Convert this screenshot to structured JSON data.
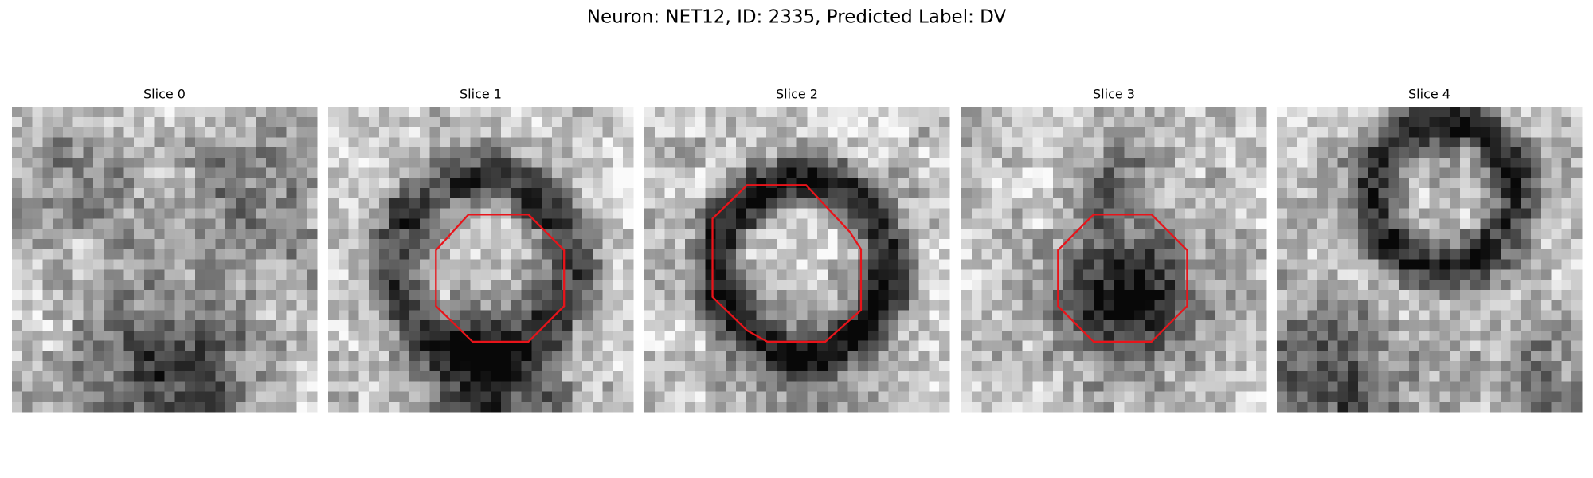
{
  "title": "Neuron: NET12, ID: 2335, Predicted Label: DV",
  "panels": [
    {
      "label": "Slice 0"
    },
    {
      "label": "Slice 1"
    },
    {
      "label": "Slice 2"
    },
    {
      "label": "Slice 3"
    },
    {
      "label": "Slice 4"
    }
  ]
}
